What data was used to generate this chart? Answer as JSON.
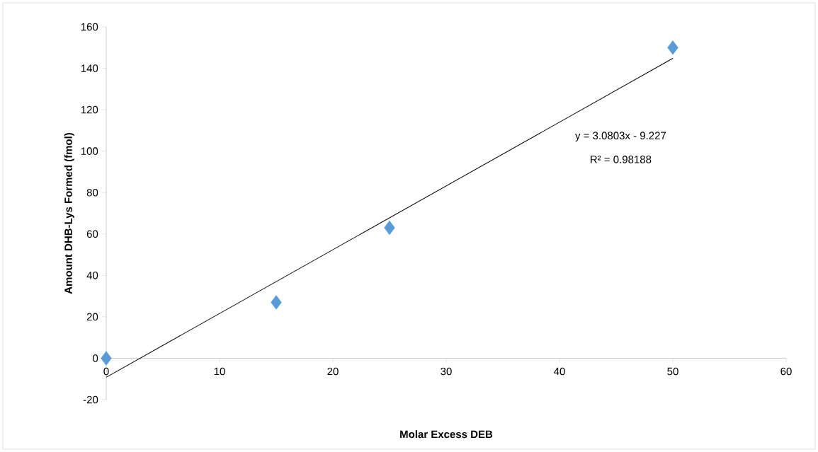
{
  "chart_data": {
    "type": "scatter",
    "xlabel": "Molar Excess DEB",
    "ylabel": "Amount DHB-Lys Formed (fmol)",
    "annotations": [
      "y = 3.0803x - 9.227",
      "R² = 0.98188"
    ],
    "x": [
      0,
      15,
      25,
      50
    ],
    "xlim": [
      0,
      60
    ],
    "ylim": [
      -20,
      160
    ],
    "xticks": [
      0,
      10,
      20,
      30,
      40,
      50,
      60
    ],
    "yticks": [
      -20,
      0,
      20,
      40,
      60,
      80,
      100,
      120,
      140,
      160
    ],
    "marker": "diamond",
    "series": [
      {
        "color": "#5b9bd5",
        "values": [
          0,
          27,
          63,
          150
        ]
      },
      {
        "type": "line",
        "x": [
          0,
          50
        ],
        "values": [
          -9.2,
          144.8
        ],
        "color": "#000000",
        "marker": "none",
        "line_style": "solid"
      }
    ]
  }
}
